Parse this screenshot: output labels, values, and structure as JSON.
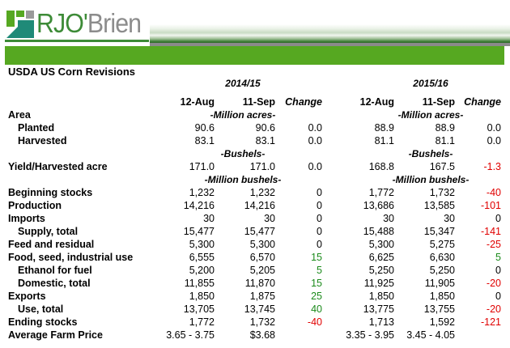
{
  "brand": {
    "logo_text": "RJO'Brien",
    "logo_part1": "RJO'",
    "logo_part2": "Brien",
    "colors": {
      "green": "#3d8b37",
      "gray": "#8c8c8c",
      "bar": "#56a821"
    }
  },
  "title": "USDA US Corn Revisions",
  "years": [
    "2014/15",
    "2015/16"
  ],
  "columns": [
    "12-Aug",
    "11-Sep",
    "Change",
    "12-Aug",
    "11-Sep",
    "Change"
  ],
  "rows": [
    {
      "type": "data",
      "label": "Area",
      "indent": false,
      "unit": "-Million acres-",
      "values": [
        "",
        "",
        "",
        "",
        "",
        ""
      ]
    },
    {
      "type": "data",
      "label": "Planted",
      "indent": true,
      "values": [
        "90.6",
        "90.6",
        "0.0",
        "88.9",
        "88.9",
        "0.0"
      ]
    },
    {
      "type": "data",
      "label": "Harvested",
      "indent": true,
      "values": [
        "83.1",
        "83.1",
        "0.0",
        "81.1",
        "81.1",
        "0.0"
      ]
    },
    {
      "type": "unit",
      "unit": "-Bushels-"
    },
    {
      "type": "data",
      "label": "Yield/Harvested acre",
      "values": [
        "171.0",
        "171.0",
        "0.0",
        "168.8",
        "167.5",
        "-1.3"
      ]
    },
    {
      "type": "unit",
      "unit": "-Million bushels-"
    },
    {
      "type": "data",
      "label": "Beginning stocks",
      "values": [
        "1,232",
        "1,232",
        "0",
        "1,772",
        "1,732",
        "-40"
      ]
    },
    {
      "type": "data",
      "label": "Production",
      "values": [
        "14,216",
        "14,216",
        "0",
        "13,686",
        "13,585",
        "-101"
      ]
    },
    {
      "type": "data",
      "label": "Imports",
      "values": [
        "30",
        "30",
        "0",
        "30",
        "30",
        "0"
      ]
    },
    {
      "type": "data",
      "label": "Supply, total",
      "indent": true,
      "values": [
        "15,477",
        "15,477",
        "0",
        "15,488",
        "15,347",
        "-141"
      ]
    },
    {
      "type": "data",
      "label": "Feed and residual",
      "values": [
        "5,300",
        "5,300",
        "0",
        "5,300",
        "5,275",
        "-25"
      ]
    },
    {
      "type": "data",
      "label": "Food, seed, industrial use",
      "values": [
        "6,555",
        "6,570",
        "15",
        "6,625",
        "6,630",
        "5"
      ]
    },
    {
      "type": "data",
      "label": "Ethanol for fuel",
      "indent": true,
      "values": [
        "5,200",
        "5,205",
        "5",
        "5,250",
        "5,250",
        "0"
      ]
    },
    {
      "type": "data",
      "label": "Domestic, total",
      "indent": true,
      "values": [
        "11,855",
        "11,870",
        "15",
        "11,925",
        "11,905",
        "-20"
      ]
    },
    {
      "type": "data",
      "label": "Exports",
      "values": [
        "1,850",
        "1,875",
        "25",
        "1,850",
        "1,850",
        "0"
      ]
    },
    {
      "type": "data",
      "label": "Use, total",
      "indent": true,
      "values": [
        "13,705",
        "13,745",
        "40",
        "13,775",
        "13,755",
        "-20"
      ]
    },
    {
      "type": "data",
      "label": "Ending stocks",
      "values": [
        "1,772",
        "1,732",
        "-40",
        "1,713",
        "1,592",
        "-121"
      ]
    },
    {
      "type": "data",
      "label": "Average Farm Price",
      "values": [
        "3.65 - 3.75",
        "$3.68",
        "",
        "3.35 - 3.95",
        "3.45 - 4.05",
        ""
      ]
    }
  ]
}
